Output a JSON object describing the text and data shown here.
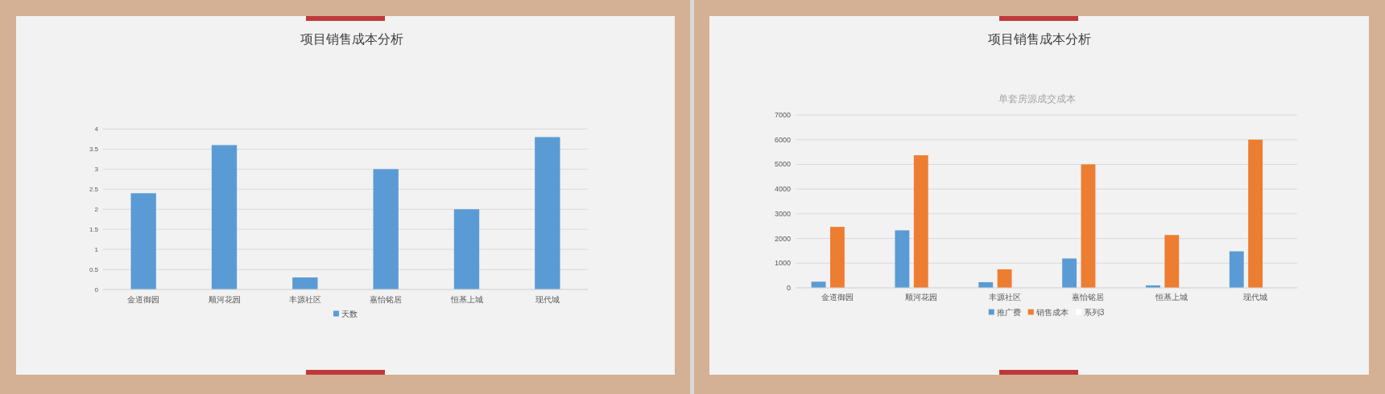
{
  "chart_data": [
    {
      "type": "bar",
      "title": "项目销售成本分析",
      "categories": [
        "金道御园",
        "顺河花园",
        "丰源社区",
        "嘉怡铭居",
        "恒基上城",
        "现代城"
      ],
      "series": [
        {
          "name": "天数",
          "color": "#5b9bd5",
          "values": [
            2.4,
            3.6,
            0.3,
            3,
            2,
            3.8
          ]
        }
      ],
      "ylim": [
        0,
        4
      ],
      "yticks": [
        0,
        0.5,
        1,
        1.5,
        2,
        2.5,
        3,
        3.5,
        4
      ],
      "grid": "y",
      "legend": "bottom"
    },
    {
      "type": "bar",
      "title": "项目销售成本分析",
      "subtitle": "单套房源成交成本",
      "categories": [
        "金道御园",
        "顺河花园",
        "丰源社区",
        "嘉怡铭居",
        "恒基上城",
        "现代城"
      ],
      "series": [
        {
          "name": "推广费",
          "color": "#5b9bd5",
          "values": [
            250,
            2330,
            230,
            1190,
            100,
            1480
          ]
        },
        {
          "name": "销售成本",
          "color": "#ed7d31",
          "values": [
            2470,
            5370,
            750,
            5000,
            2140,
            6000
          ]
        },
        {
          "name": "系列3",
          "color": "#ffffff",
          "values": [
            null,
            null,
            null,
            null,
            null,
            null
          ]
        }
      ],
      "ylim": [
        0,
        7000
      ],
      "yticks": [
        0,
        1000,
        2000,
        3000,
        4000,
        5000,
        6000,
        7000
      ],
      "grid": "y",
      "legend": "bottom"
    }
  ]
}
